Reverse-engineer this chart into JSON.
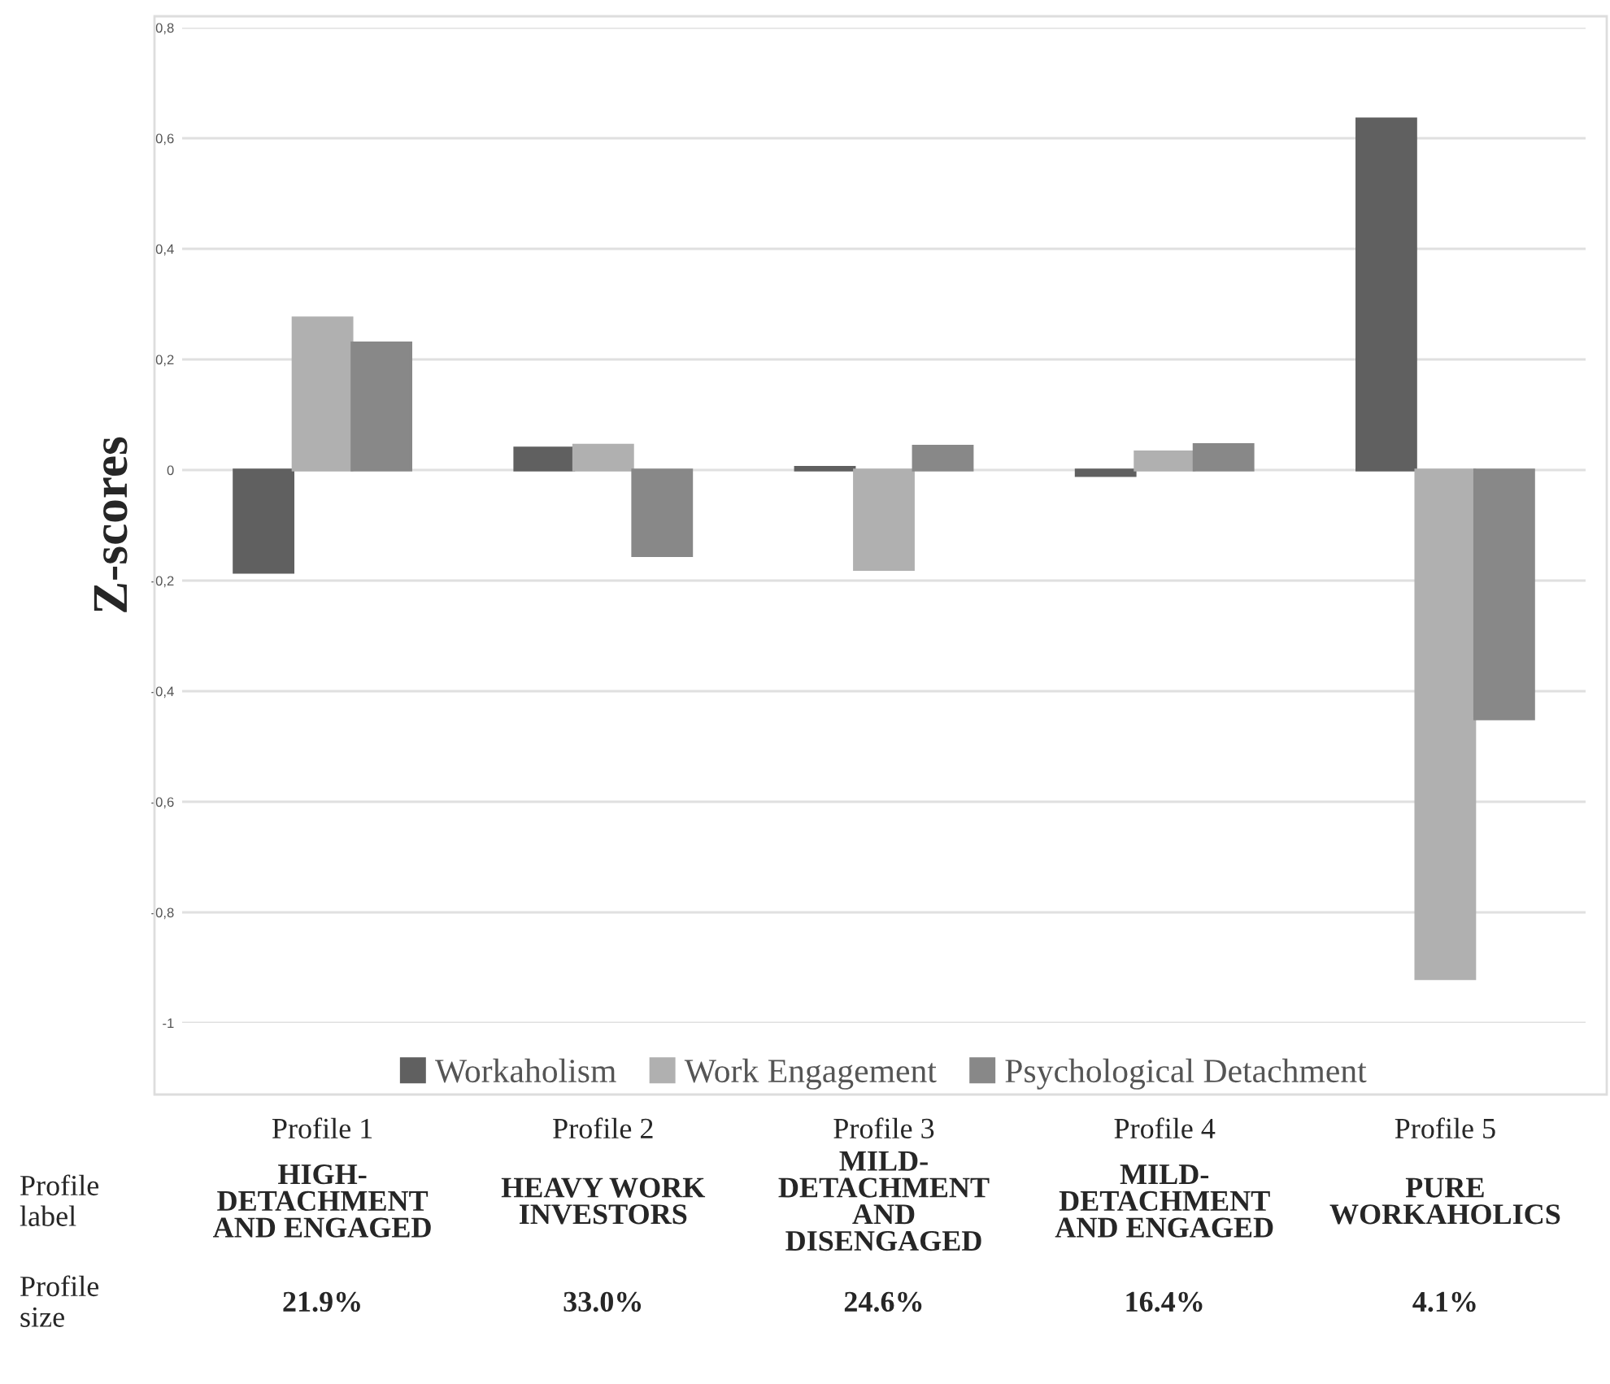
{
  "chart_data": {
    "type": "bar",
    "ylabel": "Z-scores",
    "categories": [
      "Profile 1",
      "Profile 2",
      "Profile 3",
      "Profile 4",
      "Profile 5"
    ],
    "series": [
      {
        "name": "Workaholism",
        "color": "#606060",
        "values": [
          -0.185,
          0.04,
          0.005,
          -0.01,
          0.635
        ]
      },
      {
        "name": "Work Engagement",
        "color": "#b0b0b0",
        "values": [
          0.275,
          0.045,
          -0.18,
          0.033,
          -0.92
        ]
      },
      {
        "name": "Psychological Detachment",
        "color": "#888888",
        "values": [
          0.23,
          -0.155,
          0.043,
          0.046,
          -0.45
        ]
      }
    ],
    "ylim": [
      -1,
      0.8
    ],
    "yticks": [
      {
        "value": -1,
        "label": "-1"
      },
      {
        "value": -0.8,
        "label": "-0,8"
      },
      {
        "value": -0.6,
        "label": "-0,6"
      },
      {
        "value": -0.4,
        "label": "-0,4"
      },
      {
        "value": -0.2,
        "label": "-0,2"
      },
      0,
      {
        "value": 0.2,
        "label": "0,2"
      },
      {
        "value": 0.4,
        "label": "0,4"
      },
      {
        "value": 0.6,
        "label": "0,6"
      },
      {
        "value": 0.8,
        "label": "0,8"
      }
    ],
    "grid": "y",
    "legend": "bottom",
    "annotations": [
      "Profile label",
      "HIGH-\nDETACHMENT\nAND ENGAGED",
      "HEAVY WORK\nINVESTORS",
      "MILD-\nDETACHMENT\nAND\nDISENGAGED",
      "MILD-\nDETACHMENT\nAND ENGAGED",
      "PURE\nWORKAHOLICS",
      "Profile size",
      "21.9%",
      "33.0%",
      "24.6%",
      "16.4%",
      "4.1%"
    ]
  }
}
